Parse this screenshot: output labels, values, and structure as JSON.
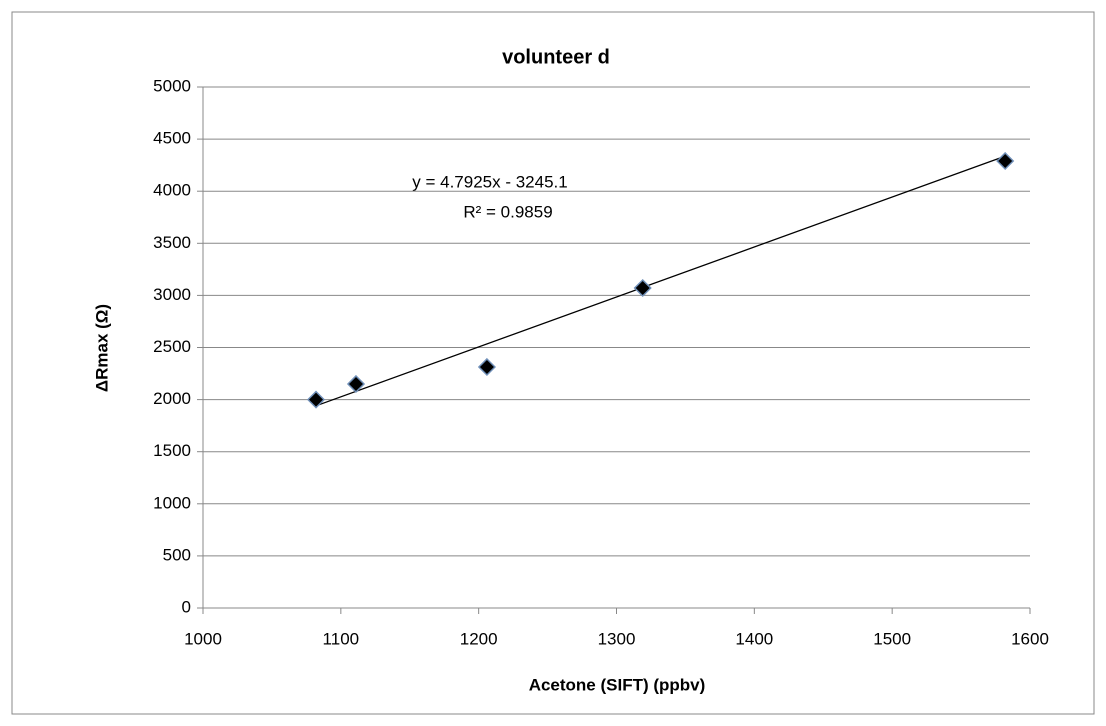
{
  "chart_data": {
    "type": "scatter",
    "title": "volunteer d",
    "x_label": "Acetone (SIFT) (ppbv)",
    "y_label": "ΔRmax (Ω)",
    "series": [
      {
        "color": "#000000",
        "x": [
          1082,
          1111,
          1206,
          1319,
          1582
        ],
        "values": [
          2000,
          2150,
          2313,
          3071,
          4290
        ]
      }
    ],
    "trendline": {
      "equation": "y = 4.7925x - 3245.1",
      "r_squared": "R² = 0.9859",
      "slope": 4.7925,
      "intercept": -3245.1
    },
    "xlim": [
      1000,
      1600
    ],
    "xticks": [
      1000,
      1100,
      1200,
      1300,
      1400,
      1500,
      1600
    ],
    "ylim": [
      0,
      5000
    ],
    "yticks": [
      0,
      500,
      1000,
      1500,
      2000,
      2500,
      3000,
      3500,
      4000,
      4500,
      5000
    ],
    "grid": true
  }
}
